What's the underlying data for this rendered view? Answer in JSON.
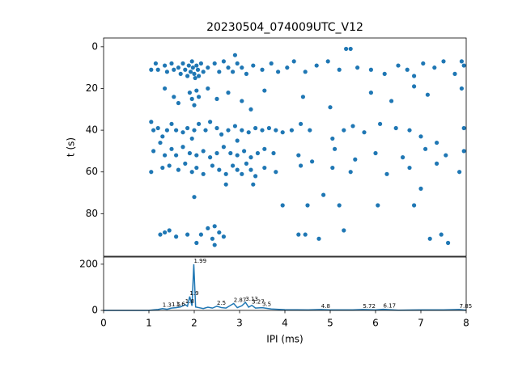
{
  "chart_data": [
    {
      "type": "scatter",
      "title": "20230504_074009UTC_V12",
      "ylabel": "t (s)",
      "color": "#1f77b4",
      "xlim": [
        0,
        8
      ],
      "ylim": [
        100.4,
        -4.2
      ],
      "yticks": [
        0,
        20,
        40,
        60,
        80
      ],
      "x": [
        1.05,
        1.15,
        1.2,
        1.35,
        1.4,
        1.5,
        1.55,
        1.65,
        1.7,
        1.75,
        1.8,
        1.85,
        1.88,
        1.92,
        1.95,
        1.97,
        2.0,
        2.02,
        2.05,
        2.08,
        2.1,
        2.15,
        2.2,
        2.3,
        2.45,
        2.55,
        2.65,
        2.75,
        2.85,
        2.9,
        2.95,
        3.05,
        3.15,
        3.3,
        3.5,
        3.7,
        3.85,
        4.05,
        4.2,
        4.45,
        4.7,
        4.95,
        5.2,
        5.45,
        5.35,
        5.6,
        5.9,
        6.2,
        6.5,
        6.7,
        6.85,
        7.05,
        7.3,
        7.5,
        7.75,
        7.9,
        7.95,
        1.35,
        1.55,
        1.65,
        1.9,
        1.95,
        2.0,
        2.05,
        2.1,
        2.3,
        2.5,
        2.75,
        3.05,
        3.25,
        3.55,
        4.4,
        5.0,
        5.9,
        6.35,
        6.85,
        7.15,
        7.9,
        1.05,
        1.1,
        1.2,
        1.3,
        1.4,
        1.5,
        1.6,
        1.75,
        1.85,
        1.95,
        2.0,
        2.1,
        2.25,
        2.35,
        2.5,
        2.6,
        2.75,
        2.9,
        2.95,
        3.05,
        3.2,
        3.35,
        3.5,
        3.65,
        3.8,
        3.95,
        4.15,
        4.35,
        4.55,
        5.05,
        5.3,
        5.5,
        5.75,
        6.1,
        6.45,
        6.75,
        7.0,
        7.35,
        7.95,
        1.1,
        1.25,
        1.35,
        1.5,
        1.6,
        1.75,
        1.9,
        2.05,
        2.2,
        2.35,
        2.5,
        2.65,
        2.8,
        2.95,
        3.1,
        3.25,
        3.4,
        3.55,
        3.75,
        4.3,
        4.6,
        5.1,
        5.55,
        6.0,
        6.6,
        7.1,
        7.55,
        7.95,
        1.05,
        1.3,
        1.45,
        1.65,
        1.8,
        1.95,
        2.05,
        2.2,
        2.4,
        2.55,
        2.7,
        2.85,
        2.95,
        3.05,
        3.15,
        3.25,
        3.35,
        3.55,
        3.8,
        4.35,
        5.05,
        5.45,
        6.25,
        6.75,
        7.35,
        7.85,
        2.0,
        2.7,
        3.3,
        3.95,
        4.5,
        4.85,
        5.2,
        6.05,
        6.85,
        7.0,
        1.25,
        1.35,
        1.45,
        1.6,
        1.85,
        2.05,
        2.15,
        2.3,
        2.4,
        2.45,
        2.55,
        2.65,
        2.45,
        4.3,
        4.45,
        4.75,
        5.3,
        7.2,
        7.45,
        7.6
      ],
      "y": [
        11,
        8,
        11,
        9,
        12,
        8,
        11,
        10,
        13,
        8,
        11,
        14,
        9,
        12,
        7,
        10,
        13,
        15,
        9,
        11,
        14,
        8,
        12,
        10,
        8,
        12,
        7,
        10,
        12,
        4,
        8,
        10,
        13,
        9,
        11,
        8,
        12,
        10,
        7,
        12,
        9,
        7,
        11,
        1,
        1,
        10,
        11,
        13,
        9,
        11,
        14,
        8,
        10,
        7,
        13,
        7,
        9,
        20,
        24,
        27,
        22,
        25,
        28,
        21,
        24,
        20,
        25,
        22,
        26,
        30,
        21,
        24,
        29,
        22,
        26,
        19,
        23,
        20,
        36,
        40,
        39,
        43,
        40,
        37,
        40,
        41,
        39,
        44,
        40,
        37,
        40,
        36,
        39,
        42,
        40,
        38,
        45,
        40,
        41,
        39,
        40,
        39,
        40,
        41,
        40,
        37,
        40,
        44,
        40,
        38,
        41,
        37,
        39,
        40,
        43,
        46,
        39,
        50,
        46,
        52,
        49,
        52,
        48,
        51,
        52,
        50,
        53,
        51,
        48,
        51,
        52,
        50,
        53,
        51,
        49,
        51,
        52,
        55,
        49,
        54,
        51,
        53,
        49,
        52,
        50,
        60,
        58,
        57,
        59,
        56,
        60,
        58,
        61,
        57,
        59,
        61,
        57,
        59,
        61,
        56,
        59,
        62,
        58,
        60,
        57,
        58,
        60,
        61,
        58,
        56,
        60,
        72,
        66,
        66,
        76,
        76,
        71,
        76,
        76,
        76,
        68,
        90,
        89,
        88,
        91,
        90,
        94,
        90,
        87,
        92,
        86,
        89,
        91,
        95,
        90,
        90,
        92,
        88,
        92,
        90,
        94
      ]
    },
    {
      "type": "line",
      "xlabel": "IPI (ms)",
      "color": "#1f77b4",
      "xlim": [
        0,
        8
      ],
      "xticks": [
        0,
        1,
        2,
        3,
        4,
        5,
        6,
        7,
        8
      ],
      "ylim": [
        0,
        231
      ],
      "yticks": [
        0,
        200
      ],
      "x": [
        0,
        1.0,
        1.1,
        1.2,
        1.3,
        1.4,
        1.5,
        1.6,
        1.7,
        1.8,
        1.85,
        1.9,
        1.95,
        1.99,
        2.03,
        2.1,
        2.2,
        2.3,
        2.4,
        2.5,
        2.6,
        2.7,
        2.8,
        2.87,
        2.95,
        3.05,
        3.13,
        3.2,
        3.27,
        3.35,
        3.5,
        3.7,
        4.0,
        4.5,
        4.8,
        5.0,
        5.5,
        5.72,
        6.0,
        6.17,
        6.5,
        7.0,
        7.5,
        7.85,
        8.0
      ],
      "values": [
        0,
        0,
        2,
        4,
        8,
        5,
        10,
        12,
        15,
        25,
        18,
        60,
        20,
        200,
        15,
        12,
        8,
        14,
        10,
        18,
        12,
        10,
        22,
        30,
        12,
        20,
        35,
        14,
        22,
        10,
        12,
        6,
        3,
        2,
        4,
        2,
        2,
        4,
        2,
        5,
        1,
        2,
        2,
        4,
        1
      ],
      "peaks": {
        "x": [
          1.99,
          1.9,
          1.8,
          2.87,
          3.13,
          3.27,
          1.3,
          1.5,
          1.6,
          2.5,
          3.5,
          4.8,
          5.72,
          6.17,
          7.85
        ],
        "y": [
          200,
          60,
          25,
          30,
          35,
          22,
          8,
          10,
          12,
          18,
          12,
          4,
          4,
          5,
          4
        ]
      }
    }
  ]
}
